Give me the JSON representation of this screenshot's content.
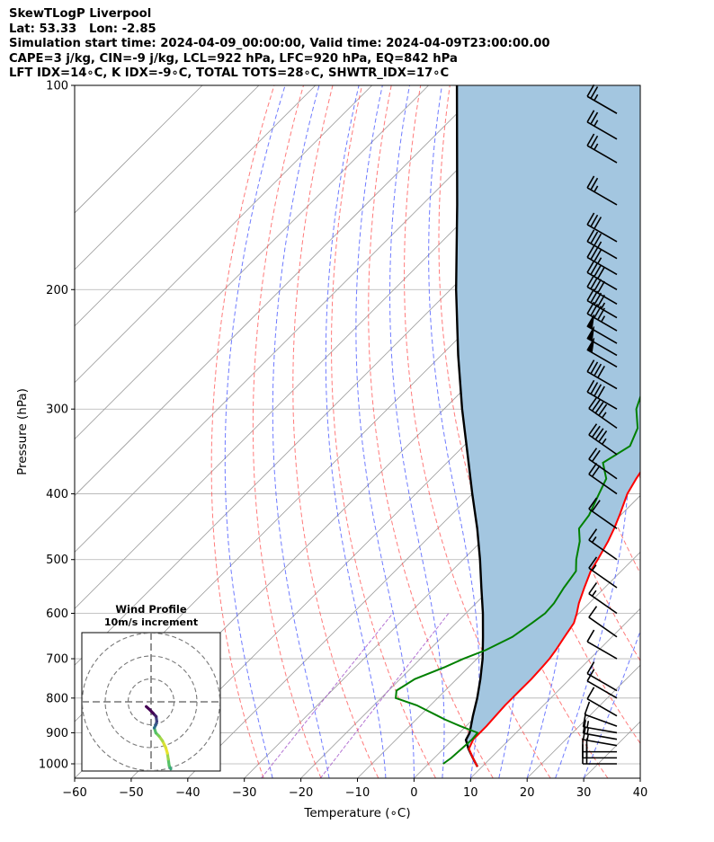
{
  "header": {
    "line1": "SkewTLogP Liverpool",
    "line2": "Lat: 53.33   Lon: -2.85",
    "line3": "Simulation start time: 2024-04-09_00:00:00, Valid time: 2024-04-09T23:00:00.00",
    "line4": "CAPE=3 j/kg, CIN=-9 j/kg, LCL=922 hPa, LFC=920 hPa, EQ=842 hPa",
    "line5": "LFT IDX=14∘C, K IDX=-9∘C, TOTAL TOTS=28∘C, SHWTR_IDX=17∘C"
  },
  "chart_data": {
    "type": "line",
    "title": "SkewTLogP Liverpool",
    "xlabel": "Temperature (∘C)",
    "ylabel": "Pressure (hPa)",
    "xlim": [
      -60,
      40
    ],
    "ylim": [
      1050,
      100
    ],
    "y_scale": "log",
    "x_ticks": [
      -60,
      -50,
      -40,
      -30,
      -20,
      -10,
      0,
      10,
      20,
      30,
      40
    ],
    "x_tick_labels": [
      "−60",
      "−50",
      "−40",
      "−30",
      "−20",
      "−10",
      "0",
      "10",
      "20",
      "30",
      "40"
    ],
    "y_ticks": [
      1000,
      900,
      800,
      700,
      600,
      500,
      400,
      300,
      200,
      100
    ],
    "y_tick_labels": [
      "1000",
      "900",
      "800",
      "700",
      "600",
      "500",
      "400",
      "300",
      "200",
      "100"
    ],
    "grid": true,
    "colors": {
      "temperature": "#ff0000",
      "dewpoint": "#008000",
      "parcel": "#000000",
      "shading": "#a3c6e0",
      "dry_adiabat": "#ff5a5a",
      "moist_adiabat": "#4b5aff",
      "mixing_ratio": "#a050c8",
      "isotherm": "#9a9a9a"
    },
    "series": [
      {
        "pressure": [
          1010,
          980,
          950,
          920,
          900,
          880,
          850,
          820,
          800,
          780,
          750,
          720,
          700,
          680,
          650,
          620,
          600,
          580,
          550,
          520,
          500,
          470,
          450,
          430,
          400,
          380,
          350,
          320,
          300,
          280,
          270,
          260,
          250,
          240,
          230,
          220,
          210,
          200,
          190,
          180,
          170,
          160,
          150,
          140,
          130,
          120,
          110,
          100
        ],
        "values": [
          9.2,
          6.8,
          4.5,
          3.6,
          3.6,
          3.6,
          3.4,
          3.2,
          3.2,
          3.2,
          3.2,
          3.0,
          2.8,
          2.4,
          1.6,
          0.8,
          -0.4,
          -1.8,
          -3.6,
          -5.4,
          -6.2,
          -7.6,
          -8.8,
          -10.2,
          -12.6,
          -13.7,
          -15.2,
          -16.6,
          -18.0,
          -19.0,
          -19.8,
          -19.6,
          -19.0,
          -17.6,
          -15.8,
          -14.2,
          -13.0,
          -11.4,
          -9.2,
          -8.6,
          -6.8,
          -6.4,
          -4.0,
          -2.8,
          -2.4,
          -1.2,
          -1.2,
          -1.6
        ]
      },
      {
        "pressure": [
          1000,
          980,
          950,
          920,
          900,
          880,
          860,
          850,
          820,
          800,
          780,
          750,
          720,
          700,
          680,
          650,
          620,
          600,
          580,
          550,
          520,
          500,
          470,
          450,
          430,
          400,
          380,
          360,
          340,
          320,
          300,
          280,
          270,
          260,
          250,
          240,
          230,
          220,
          210,
          200,
          190,
          180,
          170,
          160,
          150,
          140,
          130,
          120,
          110,
          100
        ],
        "values": [
          2.6,
          3.0,
          3.2,
          3.4,
          3.2,
          -1.0,
          -5.0,
          -6.8,
          -12.4,
          -17.4,
          -18.6,
          -17.4,
          -14.2,
          -12.4,
          -10.0,
          -7.6,
          -6.6,
          -6.0,
          -6.2,
          -7.2,
          -8.0,
          -10.0,
          -12.6,
          -15.0,
          -15.6,
          -17.6,
          -19.0,
          -22.4,
          -20.6,
          -22.4,
          -26.0,
          -28.4,
          -30.0,
          -31.0,
          -32.6,
          -33.8,
          -34.8,
          -36.6,
          -38.4,
          -40.2,
          -44.0,
          -43.6,
          -42.8,
          -41.0,
          -39.6,
          -37.4,
          -35.8,
          -34.2,
          -32.0,
          -30.2
        ]
      },
      {
        "pressure": [
          1010,
          980,
          950,
          922,
          900,
          850,
          800,
          750,
          700,
          650,
          600,
          550,
          500,
          450,
          400,
          350,
          300,
          250,
          200,
          150,
          100
        ],
        "values": [
          9.2,
          6.8,
          4.4,
          2.4,
          1.8,
          -0.6,
          -3.0,
          -5.8,
          -9.0,
          -12.8,
          -17.0,
          -21.8,
          -27.0,
          -33.0,
          -40.0,
          -47.8,
          -56.8,
          -67.0,
          -79.0,
          -93.8,
          -115.0
        ]
      }
    ],
    "wind_barbs": {
      "pressure": [
        1000,
        980,
        960,
        940,
        920,
        900,
        880,
        850,
        800,
        780,
        700,
        650,
        600,
        550,
        500,
        450,
        400,
        380,
        350,
        320,
        300,
        280,
        260,
        250,
        240,
        230,
        220,
        210,
        200,
        190,
        180,
        170,
        150,
        130,
        120,
        110
      ],
      "speed_kt": [
        20,
        20,
        20,
        15,
        15,
        15,
        10,
        10,
        10,
        10,
        10,
        10,
        15,
        15,
        15,
        20,
        20,
        20,
        45,
        45,
        40,
        40,
        50,
        50,
        50,
        45,
        45,
        40,
        40,
        35,
        35,
        30,
        25,
        25,
        25,
        25
      ],
      "direction_deg": [
        270,
        270,
        270,
        280,
        280,
        280,
        290,
        300,
        300,
        300,
        300,
        305,
        305,
        305,
        305,
        305,
        305,
        305,
        305,
        305,
        300,
        300,
        300,
        300,
        300,
        300,
        300,
        300,
        300,
        300,
        300,
        300,
        300,
        300,
        300,
        300
      ]
    },
    "hodograph": {
      "title": "Wind Profile",
      "subtitle": "10m/s increment",
      "rings_ms": [
        10,
        20,
        30
      ],
      "u": [
        8.6,
        7.9,
        7.5,
        7.1,
        6.4,
        5.0,
        3.5,
        2.1,
        1.4,
        2.1,
        2.5,
        2.2,
        0.9,
        -0.4,
        -2.1
      ],
      "v": [
        -29.3,
        -27.9,
        -25.0,
        -22.4,
        -20.0,
        -17.1,
        -15.0,
        -13.6,
        -11.4,
        -10.0,
        -8.6,
        -6.4,
        -5.0,
        -3.6,
        -2.1
      ]
    }
  }
}
